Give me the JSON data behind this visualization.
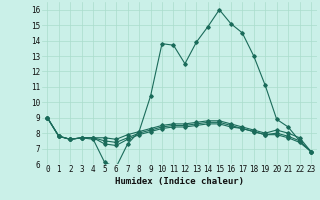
{
  "xlabel": "Humidex (Indice chaleur)",
  "bg_color": "#caf0e8",
  "grid_color": "#aaddcc",
  "line_color": "#1a6b5a",
  "xlim": [
    -0.5,
    23.5
  ],
  "ylim": [
    6,
    16.5
  ],
  "yticks": [
    6,
    7,
    8,
    9,
    10,
    11,
    12,
    13,
    14,
    15,
    16
  ],
  "xticks": [
    0,
    1,
    2,
    3,
    4,
    5,
    6,
    7,
    8,
    9,
    10,
    11,
    12,
    13,
    14,
    15,
    16,
    17,
    18,
    19,
    20,
    21,
    22,
    23
  ],
  "series": [
    [
      9.0,
      7.8,
      7.6,
      7.7,
      7.6,
      6.1,
      5.8,
      7.3,
      8.1,
      10.4,
      13.8,
      13.7,
      12.5,
      13.9,
      14.9,
      16.0,
      15.1,
      14.5,
      13.0,
      11.1,
      8.9,
      8.4,
      7.5,
      6.8
    ],
    [
      9.0,
      7.8,
      7.6,
      7.7,
      7.7,
      7.3,
      7.2,
      7.6,
      7.9,
      8.1,
      8.3,
      8.4,
      8.4,
      8.5,
      8.6,
      8.6,
      8.4,
      8.3,
      8.1,
      7.9,
      7.9,
      7.7,
      7.4,
      6.8
    ],
    [
      9.0,
      7.8,
      7.6,
      7.7,
      7.7,
      7.5,
      7.4,
      7.7,
      8.0,
      8.2,
      8.4,
      8.5,
      8.5,
      8.6,
      8.7,
      8.7,
      8.5,
      8.3,
      8.1,
      7.9,
      8.0,
      7.8,
      7.5,
      6.8
    ],
    [
      9.0,
      7.8,
      7.6,
      7.7,
      7.7,
      7.7,
      7.6,
      7.9,
      8.1,
      8.3,
      8.5,
      8.6,
      8.6,
      8.7,
      8.8,
      8.8,
      8.6,
      8.4,
      8.2,
      8.0,
      8.2,
      8.0,
      7.7,
      6.8
    ]
  ]
}
